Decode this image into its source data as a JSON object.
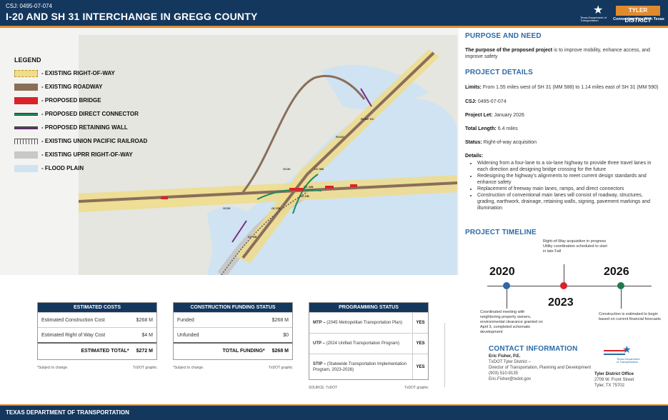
{
  "header": {
    "csj": "CSJ: 0495-07-074",
    "title": "I-20 AND SH 31 INTERCHANGE IN GREGG COUNTY",
    "district_badge": "TYLER DISTRICT",
    "district_tagline": "Connecting You With Texas",
    "logo_text": "Texas Department of Transportation"
  },
  "legend": {
    "title": "LEGEND",
    "items": [
      {
        "label": "- EXISTING RIGHT-OF-WAY",
        "color": "#f0dc8a",
        "style": "dashed"
      },
      {
        "label": "- EXISTING ROADWAY",
        "color": "#8a6e5a",
        "style": "solid"
      },
      {
        "label": "- PROPOSED BRIDGE",
        "color": "#d8232a",
        "style": "solid"
      },
      {
        "label": "- PROPOSED DIRECT CONNECTOR",
        "color": "#1f8a5b",
        "style": "line"
      },
      {
        "label": "- PROPOSED RETAINING WALL",
        "color": "#7a2a8a",
        "style": "line"
      },
      {
        "label": "- EXISTING UNION PACIFIC RAILROAD",
        "color": "#555555",
        "style": "rail"
      },
      {
        "label": "- EXISTING UPRR RIGHT-OF-WAY",
        "color": "#c8c8c8",
        "style": "solid"
      },
      {
        "label": "- FLOOD PLAIN",
        "color": "#cfe3f2",
        "style": "solid"
      }
    ]
  },
  "map": {
    "labels": [
      "OC30",
      "OC30",
      "RAMP DC",
      "ROAD",
      "DC MB",
      "OC EB",
      "DC WB",
      "OC EB",
      "DC SB"
    ]
  },
  "purpose": {
    "title": "PURPOSE AND NEED",
    "bold": "The purpose of the proposed project",
    "text": " is to improve mobility, enhance access, and improve safety"
  },
  "details": {
    "title": "PROJECT DETAILS",
    "limits_label": "Limits:",
    "limits": " From 1.55 miles west of SH 31 (MM 588) to 1.14 miles east of SH 31 (MM 590)",
    "csj_label": "CSJ:",
    "csj": " 0495-07-074",
    "let_label": "Project Let:",
    "let": " January 2026",
    "length_label": "Total Length:",
    "length": " 6.4 miles",
    "status_label": "Status:",
    "status": " Right-of-way acquisition",
    "details_label": "Details:",
    "bullets": [
      "Widening from a four-lane to a six-lane highway to provide three travel lanes in each direction and designing bridge crossing for the future",
      "Redesigning the highway's alignments to meet current design standards and enhance safety",
      "Replacement of freeway main lanes, ramps, and direct connectors",
      "Construction of conventional main lanes will consist of roadway, structures, grading, earthwork, drainage, retaining walls, signing, pavement markings and illumination"
    ]
  },
  "timeline": {
    "title": "PROJECT TIMELINE",
    "milestones": [
      {
        "year": "2020",
        "note": "Coordinated meeting with neighboring property owners, environmental clearance granted on April 3, completed schematic development",
        "color": "#2b6aa8"
      },
      {
        "year": "2023",
        "note": "Right-of-Way acquisition in progress Utility coordination scheduled to start in late Fall",
        "color": "#d8232a"
      },
      {
        "year": "2026",
        "note": "Construction is estimated to begin based on current financial forecasts",
        "color": "#1f7a4a"
      }
    ]
  },
  "costs": {
    "title": "ESTIMATED COSTS",
    "rows": [
      {
        "label": "Estimated Construction Cost",
        "value": "$268 M"
      },
      {
        "label": "Estimated Right of Way Cost",
        "value": "$4 M"
      }
    ],
    "total_label": "ESTIMATED TOTAL*",
    "total_value": "$272 M",
    "footnote": "*Subject to change.",
    "source": "TxDOT graphic"
  },
  "funding": {
    "title": "CONSTRUCTION FUNDING STATUS",
    "rows": [
      {
        "label": "Funded",
        "value": "$268 M"
      },
      {
        "label": "Unfunded",
        "value": "$0"
      }
    ],
    "total_label": "TOTAL FUNDING*",
    "total_value": "$268 M",
    "footnote": "*Subject to change.",
    "source": "TxDOT graphic"
  },
  "programming": {
    "title": "PROGRAMMING STATUS",
    "rows": [
      {
        "abbr": "MTP –",
        "label": " (2045 Metropolitan Transportation Plan)",
        "value": "YES"
      },
      {
        "abbr": "UTP –",
        "label": " (2024 Unified Transportation Program)",
        "value": "YES"
      },
      {
        "abbr": "STIP –",
        "label": " (Statewide Transportation Implementation Program, 2023-2026)",
        "value": "YES"
      }
    ],
    "footnote": "SOURCE: TxDOT",
    "source": "TxDOT graphic"
  },
  "contact": {
    "title": "CONTACT INFORMATION",
    "name": "Eric Fisher, P.E.",
    "lines": [
      "TxDOT Tyler District –",
      "Director of Transportation, Planning and Development",
      "(903) 510-9135",
      "Eric.Fisher@txdot.gov"
    ],
    "office_title": "Tyler District Office",
    "office_lines": [
      "2709 W. Front Street",
      "Tyler, TX 75702"
    ],
    "logo_text": "Texas Department of Transportation"
  },
  "footer": {
    "text": "TEXAS DEPARTMENT OF TRANSPORTATION"
  }
}
